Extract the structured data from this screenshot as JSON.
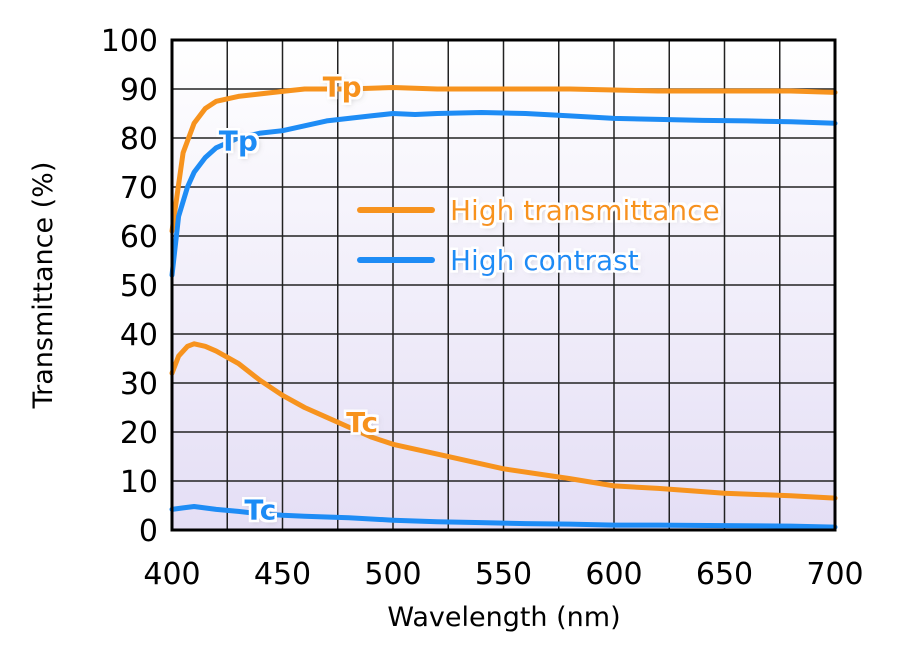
{
  "chart_data": {
    "type": "line",
    "xlabel": "Wavelength (nm)",
    "ylabel": "Transmittance (%)",
    "xlim": [
      400,
      700
    ],
    "ylim": [
      0,
      100
    ],
    "xticks": [
      "400",
      "450",
      "500",
      "550",
      "600",
      "650",
      "700"
    ],
    "yticks": [
      "0",
      "10",
      "20",
      "30",
      "40",
      "50",
      "60",
      "70",
      "80",
      "90",
      "100"
    ],
    "grid": true,
    "background": "lavender gradient",
    "legend_position": "center-right",
    "legend": [
      {
        "name": "High transmittance",
        "color": "#F7931E"
      },
      {
        "name": "High contrast",
        "color": "#1E8CF5"
      }
    ],
    "series": [
      {
        "label": "Tp",
        "group": "High transmittance",
        "color": "#F7931E",
        "x": [
          400,
          405,
          410,
          415,
          420,
          430,
          440,
          450,
          460,
          470,
          480,
          500,
          520,
          550,
          580,
          600,
          620,
          650,
          680,
          700
        ],
        "y": [
          61,
          77,
          83,
          86,
          87.5,
          88.5,
          89,
          89.5,
          90,
          90,
          90,
          90.3,
          90,
          90,
          90,
          89.8,
          89.6,
          89.6,
          89.6,
          89.3
        ]
      },
      {
        "label": "Tp",
        "group": "High contrast",
        "color": "#1E8CF5",
        "x": [
          400,
          403,
          407,
          410,
          415,
          420,
          425,
          430,
          440,
          450,
          460,
          470,
          480,
          490,
          500,
          510,
          520,
          540,
          560,
          580,
          600,
          620,
          640,
          660,
          680,
          700
        ],
        "y": [
          52,
          64,
          70,
          73,
          76,
          78,
          79,
          80,
          81,
          81.5,
          82.5,
          83.5,
          84,
          84.5,
          85,
          84.8,
          85,
          85.2,
          85,
          84.5,
          84,
          83.8,
          83.6,
          83.5,
          83.3,
          83
        ]
      },
      {
        "label": "Tc",
        "group": "High transmittance",
        "color": "#F7931E",
        "x": [
          400,
          403,
          407,
          410,
          415,
          420,
          430,
          440,
          450,
          460,
          470,
          480,
          490,
          500,
          520,
          550,
          580,
          600,
          620,
          650,
          680,
          700
        ],
        "y": [
          32,
          35.5,
          37.5,
          38,
          37.5,
          36.5,
          34,
          30.5,
          27.5,
          25,
          23,
          21,
          19,
          17.5,
          15.5,
          12.5,
          10.5,
          9,
          8.5,
          7.5,
          7,
          6.5
        ]
      },
      {
        "label": "Tc",
        "group": "High contrast",
        "color": "#1E8CF5",
        "x": [
          400,
          405,
          410,
          420,
          430,
          440,
          450,
          460,
          480,
          500,
          520,
          540,
          560,
          580,
          600,
          620,
          650,
          680,
          700
        ],
        "y": [
          4.2,
          4.5,
          4.8,
          4.2,
          3.8,
          3.3,
          3,
          2.8,
          2.5,
          2,
          1.7,
          1.5,
          1.3,
          1.2,
          1,
          1,
          0.9,
          0.8,
          0.6
        ]
      }
    ],
    "annotations": [
      {
        "text": "Tp",
        "x": 477,
        "y": 90.5,
        "color": "#F7931E"
      },
      {
        "text": "Tp",
        "x": 430,
        "y": 79.5,
        "color": "#1E8CF5"
      },
      {
        "text": "Tc",
        "x": 486,
        "y": 22,
        "color": "#F7931E"
      },
      {
        "text": "Tc",
        "x": 440,
        "y": 4.2,
        "color": "#1E8CF5"
      }
    ]
  }
}
